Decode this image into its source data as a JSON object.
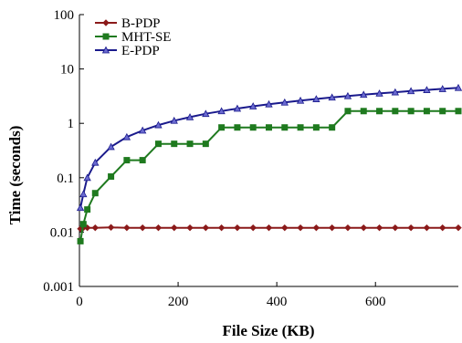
{
  "chart_data": {
    "type": "line",
    "xlabel": "File Size (KB)",
    "ylabel": "Time (seconds)",
    "xlim": [
      0,
      768
    ],
    "ylim": [
      0.001,
      100
    ],
    "y_scale": "log",
    "x_ticks": [
      "0",
      "200",
      "400",
      "600"
    ],
    "y_ticks": [
      "0.001",
      "0.01",
      "0.1",
      "1",
      "10",
      "100"
    ],
    "grid": false,
    "legend_position": "top-left",
    "x": [
      2,
      8,
      16,
      32,
      64,
      96,
      128,
      160,
      192,
      224,
      256,
      288,
      320,
      352,
      384,
      416,
      448,
      480,
      512,
      544,
      576,
      608,
      640,
      672,
      704,
      736,
      768
    ],
    "series": [
      {
        "name": "B-PDP",
        "color": "#8b1a1a",
        "marker": "diamond",
        "values": [
          0.0115,
          0.012,
          0.012,
          0.012,
          0.0122,
          0.012,
          0.012,
          0.012,
          0.012,
          0.012,
          0.012,
          0.012,
          0.012,
          0.012,
          0.012,
          0.012,
          0.012,
          0.012,
          0.012,
          0.012,
          0.012,
          0.012,
          0.012,
          0.012,
          0.012,
          0.012,
          0.012
        ]
      },
      {
        "name": "MHT-SE",
        "color": "#1f7a1f",
        "marker": "square",
        "values": [
          0.0068,
          0.014,
          0.026,
          0.052,
          0.105,
          0.21,
          0.21,
          0.42,
          0.42,
          0.42,
          0.42,
          0.84,
          0.84,
          0.84,
          0.84,
          0.84,
          0.84,
          0.84,
          0.84,
          1.68,
          1.68,
          1.68,
          1.68,
          1.68,
          1.68,
          1.68,
          1.68
        ]
      },
      {
        "name": "E-PDP",
        "color": "#1a1a8c",
        "marker": "triangle",
        "values": [
          0.028,
          0.05,
          0.1,
          0.19,
          0.37,
          0.56,
          0.74,
          0.93,
          1.12,
          1.3,
          1.5,
          1.68,
          1.87,
          2.06,
          2.25,
          2.43,
          2.62,
          2.8,
          3.0,
          3.18,
          3.37,
          3.55,
          3.74,
          3.93,
          4.12,
          4.3,
          4.5
        ]
      }
    ]
  }
}
